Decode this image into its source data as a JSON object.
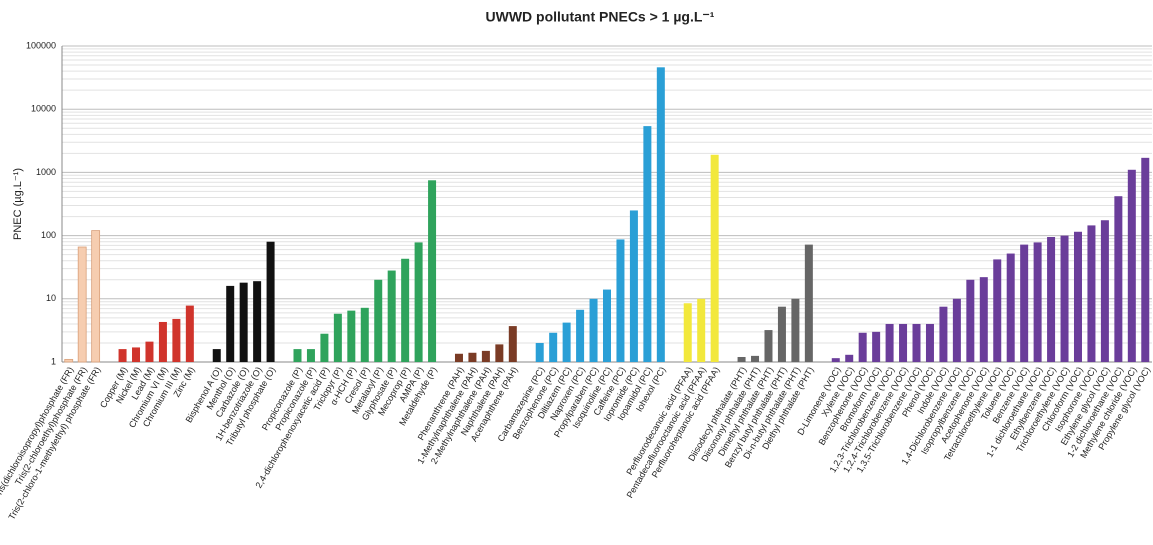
{
  "chart_data": {
    "type": "bar",
    "title": "UWWD pollutant PNECs > 1 µg.L⁻¹",
    "y_label": "PNEC (µg.L⁻¹)",
    "log_scale": true,
    "grid": true,
    "ylim": [
      1,
      100000
    ],
    "yticks": [
      1,
      10,
      100,
      1000,
      10000,
      100000
    ],
    "categories": [
      "Tris(dichloroisopropyl)phosphate (FR)",
      "Tris(2-chloroethyl)phosphate (FR)",
      "Tris(2-chloro-1-methylethyl) phosphate (FR)",
      null,
      "Copper (M)",
      "Nickel (M)",
      "Lead (M)",
      "Chromium VI (M)",
      "Chromium III (M)",
      "Zinc (M)",
      null,
      "Bisphenol A (O)",
      "Menthol (O)",
      "Carbazole (O)",
      "1H-benzotriazole (O)",
      "Tributyl phosphate (O)",
      null,
      "Propiconazole (P)",
      "Propiconazole (P)",
      "2,4-dichlorophenoxyacetic acid (P)",
      "Triclopyr (P)",
      "α-HCH (P)",
      "Cresol (P)",
      "Metalaxyl (P)",
      "Glyphosate (P)",
      "Mecoprop (P)",
      "AMPA (P)",
      "Metaldehyde (P)",
      null,
      "Phenanthrene (PAH)",
      "1-Methylnaphthalene (PAH)",
      "2-Methylnaphthalene (PAH)",
      "Naphthalene (PAH)",
      "Acenaphthene (PAH)",
      null,
      "Carbamazepine (PC)",
      "Benzophenone (PC)",
      "Diltiazem (PC)",
      "Naproxen (PC)",
      "Propylparaben (PC)",
      "Isoquinoline (PC)",
      "Caffeine (PC)",
      "Iopromide (PC)",
      "Iopamidol (PC)",
      "Iohexol (PC)",
      null,
      "Perfluorodecanoic acid (PFAA)",
      "Pentadecafluorooctanoic acid (PFAA)",
      "Perfluoroheptanoic acid (PFAA)",
      null,
      "Diisodecyl phthalate (PHT)",
      "Diisononyl phthalate (PHT)",
      "Dimethyl phthalate (PHT)",
      "Benzyl butyl phthalate (PHT)",
      "Di-n-butyl phthalate (PHT)",
      "Diethyl phthalate (PHT)",
      null,
      "D-Limonene (VOC)",
      "Xylene (VOC)",
      "Benzophenone (VOC)",
      "Bromoform (VOC)",
      "1,2,3-Trichlorobenzene (VOC)",
      "1,2,4-Trichlorobenzene (VOC)",
      "1,3,5-Trichlorobenzene (VOC)",
      "Phenol (VOC)",
      "Indole (VOC)",
      "1,4-Dichlorobenzene (VOC)",
      "Isopropylbenzene (VOC)",
      "Acetophenone (VOC)",
      "Tetrachloroethylene (VOC)",
      "Toluene (VOC)",
      "Benzene (VOC)",
      "1-1 dichloroethane (VOC)",
      "Ethylbenzene (VOC)",
      "Trichloroethylene (VOC)",
      "Chloroform (VOC)",
      "Isophorone (VOC)",
      "Ethylene glycol (VOC)",
      "1-2 dichloroethane (VOC)",
      "Methylene chloride (VOC)",
      "Propylene glycol (VOC)"
    ],
    "values": [
      1.1,
      66,
      120,
      null,
      1.6,
      1.7,
      2.1,
      4.3,
      4.8,
      7.8,
      null,
      1.6,
      16,
      18,
      19,
      80,
      null,
      1.6,
      1.6,
      2.8,
      5.8,
      6.5,
      7.2,
      20,
      28,
      43,
      78,
      750,
      null,
      1.35,
      1.4,
      1.5,
      1.9,
      3.7,
      null,
      2,
      2.9,
      4.2,
      6.7,
      10,
      14,
      87,
      250,
      5400,
      46000,
      null,
      8.5,
      10,
      1900,
      null,
      1.2,
      1.25,
      3.2,
      7.5,
      10,
      72,
      null,
      1.15,
      1.3,
      2.9,
      3,
      4,
      4,
      4,
      4,
      7.5,
      10,
      20,
      22,
      42,
      52,
      72,
      78,
      95,
      100,
      115,
      145,
      175,
      420,
      1100,
      1700
    ],
    "colors": [
      "#f6cdb0",
      "#f6cdb0",
      "#f6cdb0",
      null,
      "#d0342c",
      "#d0342c",
      "#d0342c",
      "#d0342c",
      "#d0342c",
      "#d0342c",
      null,
      "#111111",
      "#111111",
      "#111111",
      "#111111",
      "#111111",
      null,
      "#2fa35c",
      "#2fa35c",
      "#2fa35c",
      "#2fa35c",
      "#2fa35c",
      "#2fa35c",
      "#2fa35c",
      "#2fa35c",
      "#2fa35c",
      "#2fa35c",
      "#2fa35c",
      null,
      "#7a3b25",
      "#7a3b25",
      "#7a3b25",
      "#7a3b25",
      "#7a3b25",
      null,
      "#2a9fd6",
      "#2a9fd6",
      "#2a9fd6",
      "#2a9fd6",
      "#2a9fd6",
      "#2a9fd6",
      "#2a9fd6",
      "#2a9fd6",
      "#2a9fd6",
      "#2a9fd6",
      null,
      "#f2e83c",
      "#f2e83c",
      "#f2e83c",
      null,
      "#666666",
      "#666666",
      "#666666",
      "#666666",
      "#666666",
      "#666666",
      null,
      "#6a3d9a",
      "#6a3d9a",
      "#6a3d9a",
      "#6a3d9a",
      "#6a3d9a",
      "#6a3d9a",
      "#6a3d9a",
      "#6a3d9a",
      "#6a3d9a",
      "#6a3d9a",
      "#6a3d9a",
      "#6a3d9a",
      "#6a3d9a",
      "#6a3d9a",
      "#6a3d9a",
      "#6a3d9a",
      "#6a3d9a",
      "#6a3d9a",
      "#6a3d9a",
      "#6a3d9a",
      "#6a3d9a",
      "#6a3d9a",
      "#6a3d9a",
      "#6a3d9a"
    ]
  }
}
